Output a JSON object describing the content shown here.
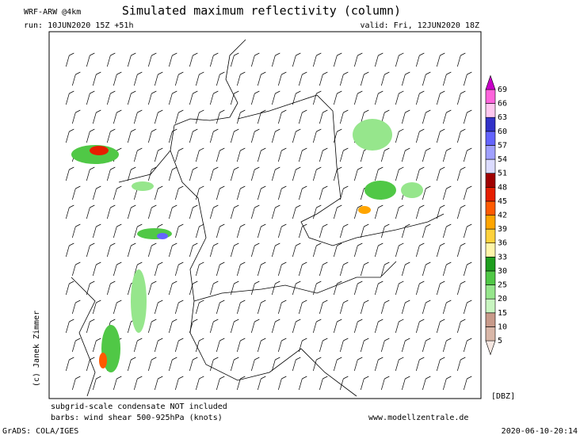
{
  "header": {
    "model": "WRF-ARW @4km",
    "title": "Simulated maximum reflectivity (column)",
    "run": "run: 10JUN2020 15Z +51h",
    "valid": "valid: Fri, 12JUN2020 18Z"
  },
  "credit": "(c) Janek Zimmer",
  "colorbar": {
    "unit": "[DBZ]",
    "levels": [
      5,
      10,
      15,
      20,
      25,
      30,
      33,
      36,
      39,
      42,
      45,
      48,
      51,
      54,
      57,
      60,
      63,
      66,
      69
    ],
    "colors": [
      "#f6e8e2",
      "#d9b7a8",
      "#c89a8a",
      "#c8f5c0",
      "#96e68c",
      "#50c846",
      "#1e9e1e",
      "#fff5aa",
      "#ffd23c",
      "#ffa500",
      "#ff5a00",
      "#e61e00",
      "#a00000",
      "#dcdcff",
      "#a0a0ff",
      "#6464ff",
      "#3232c8",
      "#ffc8f0",
      "#ff64dc",
      "#c800c8"
    ]
  },
  "footer": {
    "note1": "subgrid-scale condensate NOT included",
    "note2": "barbs: wind shear 500-925hPa (knots)",
    "website": "www.modellzentrale.de",
    "software": "GrADS: COLA/IGES",
    "timestamp": "2020-06-10-20:14"
  }
}
